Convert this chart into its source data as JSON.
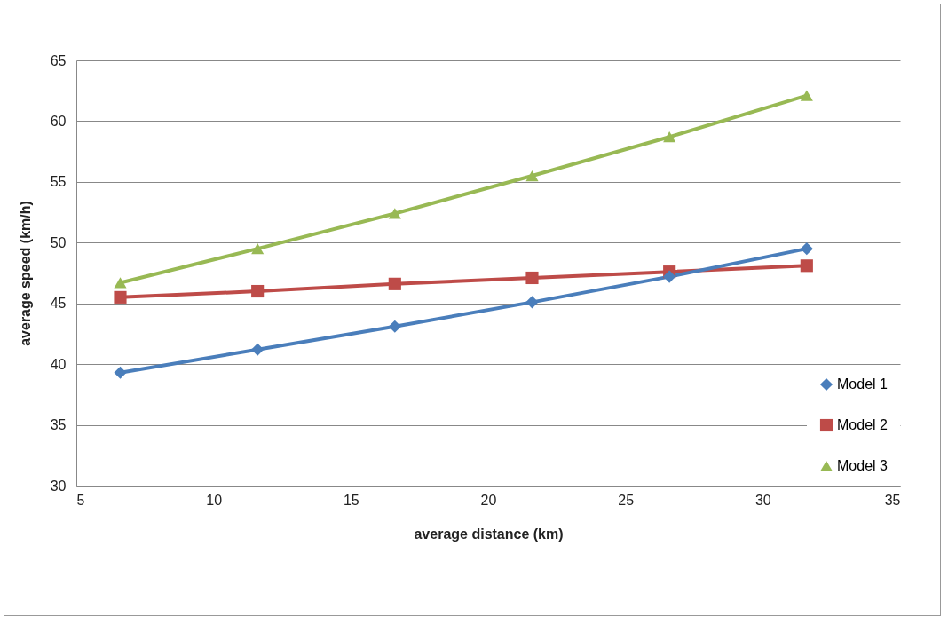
{
  "chart_data": {
    "type": "line",
    "xlabel": "average distance (km)",
    "ylabel": "average speed  (km/h)",
    "x": [
      6.6,
      11.6,
      16.6,
      21.6,
      26.6,
      31.6
    ],
    "series": [
      {
        "name": "Model 1",
        "color": "#4a7ebb",
        "marker": "diamond",
        "values": [
          39.3,
          41.2,
          43.1,
          45.1,
          47.2,
          49.5
        ]
      },
      {
        "name": "Model 2",
        "color": "#be4b48",
        "marker": "square",
        "values": [
          45.5,
          46.0,
          46.6,
          47.1,
          47.6,
          48.1
        ]
      },
      {
        "name": "Model 3",
        "color": "#98b954",
        "marker": "triangle",
        "values": [
          46.7,
          49.5,
          52.4,
          55.5,
          58.7,
          62.1
        ]
      }
    ],
    "xlim": [
      5,
      35
    ],
    "xticks": [
      5,
      10,
      15,
      20,
      25,
      30,
      35
    ],
    "ylim": [
      30,
      65
    ],
    "yticks": [
      30,
      35,
      40,
      45,
      50,
      55,
      60,
      65
    ],
    "grid": "y",
    "legend": "bottom right",
    "line_style": "solid"
  }
}
